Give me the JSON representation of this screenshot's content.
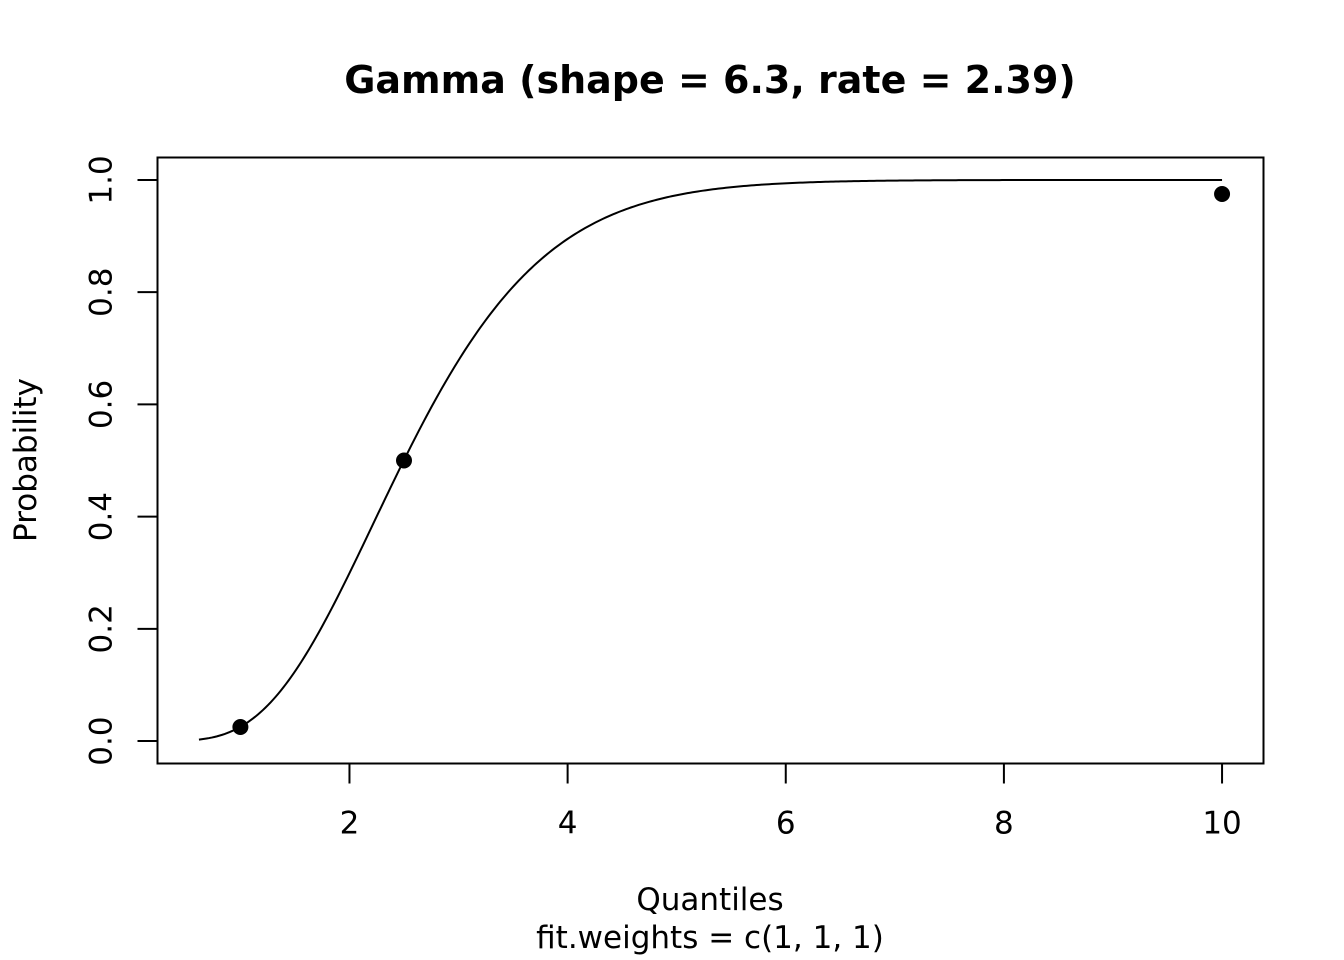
{
  "chart_data": {
    "type": "line",
    "title": "Gamma (shape = 6.3, rate = 2.39)",
    "xlabel": "Quantiles",
    "subtitle": "fit.weights = c(1, 1, 1)",
    "ylabel": "Probability",
    "xlim": [
      0.24,
      10.38
    ],
    "ylim": [
      -0.04,
      1.04
    ],
    "x_ticks": [
      2,
      4,
      6,
      8,
      10
    ],
    "y_ticks": [
      0.0,
      0.2,
      0.4,
      0.6,
      0.8,
      1.0
    ],
    "x_tick_labels": [
      "2",
      "4",
      "6",
      "8",
      "10"
    ],
    "y_tick_labels": [
      "0.0",
      "0.2",
      "0.4",
      "0.6",
      "0.8",
      "1.0"
    ],
    "distribution": {
      "family": "gamma",
      "shape": 6.3,
      "rate": 2.39,
      "x_range": [
        0.62,
        10.0
      ]
    },
    "points": [
      {
        "x": 1.0,
        "y": 0.025
      },
      {
        "x": 2.5,
        "y": 0.5
      },
      {
        "x": 10.0,
        "y": 0.975
      }
    ],
    "grid": false,
    "legend": "none"
  }
}
